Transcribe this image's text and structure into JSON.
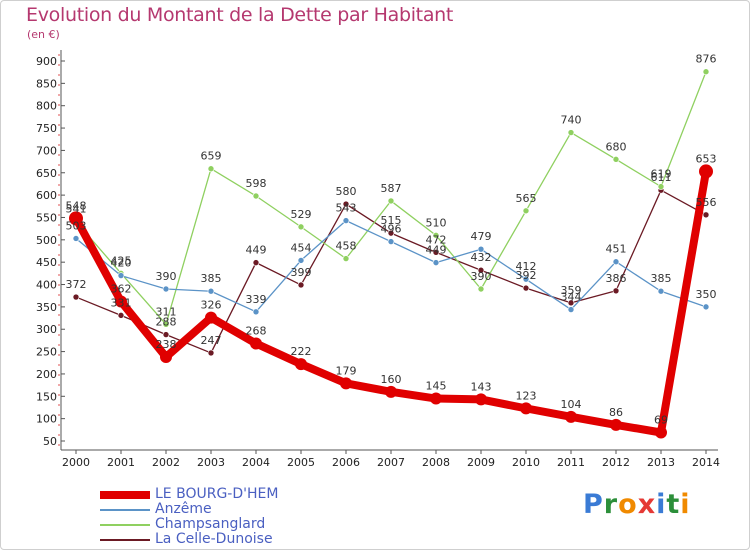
{
  "header": {
    "title": "Evolution du Montant de la Dette par Habitant",
    "unit": "(en €)"
  },
  "logo": {
    "letters": [
      "P",
      "r",
      "o",
      "x",
      "i",
      "t",
      "i"
    ],
    "colors": [
      "#3a7bd5",
      "#2c8f3a",
      "#f08a00",
      "#e53935",
      "#3a7bd5",
      "#2c8f3a",
      "#f08a00"
    ]
  },
  "chart_data": {
    "type": "line",
    "x": [
      "2000",
      "2001",
      "2002",
      "2003",
      "2004",
      "2005",
      "2006",
      "2007",
      "2008",
      "2009",
      "2010",
      "2011",
      "2012",
      "2013",
      "2014"
    ],
    "y_ticks": [
      50,
      100,
      150,
      200,
      250,
      300,
      350,
      400,
      450,
      500,
      550,
      600,
      650,
      700,
      750,
      800,
      850,
      900
    ],
    "ylim": [
      50,
      900
    ],
    "grid": false,
    "legend_position": "bottom-left",
    "series": [
      {
        "name": "LE BOURG-D'HEM",
        "color": "#e00000",
        "values": [
          548,
          362,
          238,
          326,
          268,
          222,
          179,
          160,
          145,
          143,
          123,
          104,
          86,
          69,
          653
        ]
      },
      {
        "name": "Anzême",
        "color": "#5b93c7",
        "values": [
          503,
          420,
          390,
          385,
          339,
          454,
          543,
          496,
          449,
          479,
          412,
          344,
          451,
          385,
          350
        ]
      },
      {
        "name": "Champsanglard",
        "color": "#8fd060",
        "values": [
          541,
          425,
          311,
          659,
          598,
          529,
          458,
          587,
          510,
          390,
          565,
          740,
          680,
          619,
          876
        ]
      },
      {
        "name": "La Celle-Dunoise",
        "color": "#6b1a24",
        "values": [
          372,
          331,
          288,
          247,
          449,
          399,
          580,
          515,
          472,
          432,
          392,
          359,
          386,
          611,
          556
        ]
      }
    ]
  }
}
